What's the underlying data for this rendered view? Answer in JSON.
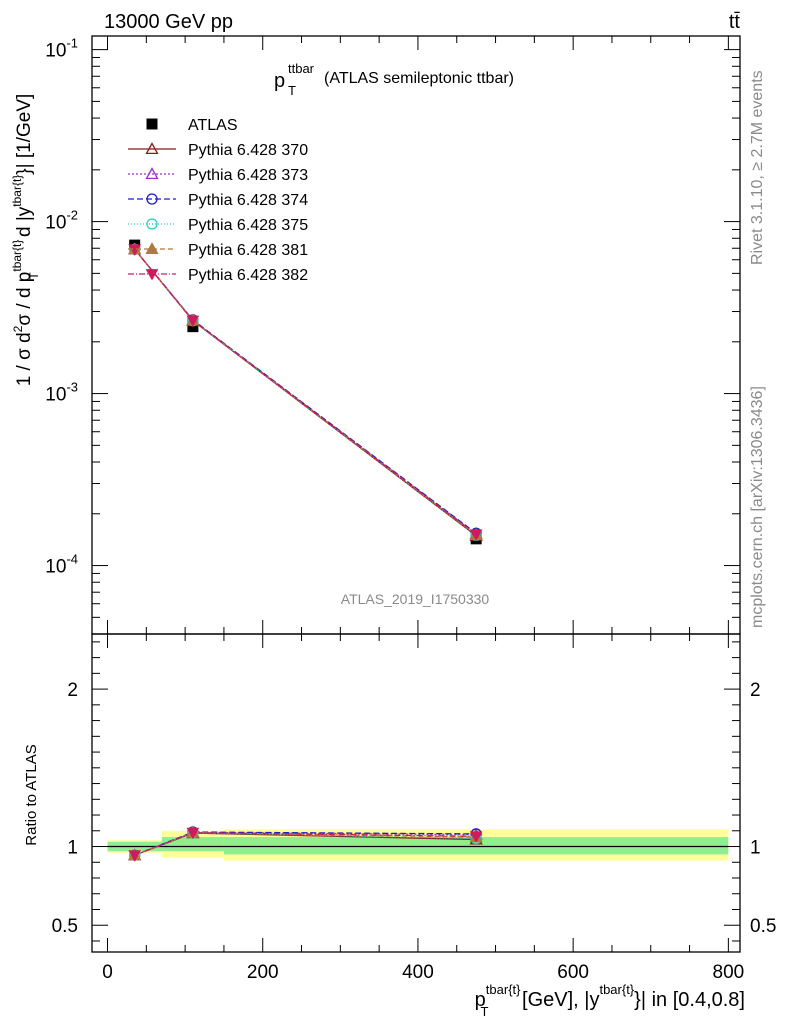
{
  "header": {
    "left": "13000 GeV pp",
    "right": "tt̄"
  },
  "side_text": {
    "rivet": "Rivet 3.1.10, ≥ 2.7M events",
    "mcplots": "mcplots.cern.ch [arXiv:1306.3436]"
  },
  "plot_title": {
    "main": "p",
    "sup": "ttbar",
    "sub": "T",
    "rest": "(ATLAS semileptonic ttbar)"
  },
  "analysis_id": "ATLAS_2019_I1750330",
  "y_label_main": "1 / σ d²σ / d p^{tbar{t}}_T d |y^{tbar{t}}| [1/GeV]",
  "y_label_ratio": "Ratio to ATLAS",
  "x_label": "p^{tbar{t}}_T [GeV], |y^{tbar{t}}| in [0.4,0.8]",
  "colors": {
    "data": "#000000",
    "p370": "#8b1a1a",
    "p373": "#9932cc",
    "p374": "#1c1ccc",
    "p375": "#20d0c0",
    "p381": "#b07a3a",
    "p382": "#d01a5a",
    "band_inner": "#90ee90",
    "band_outer": "#ffff99"
  },
  "chart_data": {
    "type": "line",
    "x_edges": [
      0,
      70,
      150,
      800
    ],
    "x": [
      35,
      110,
      475
    ],
    "xlim": [
      -20,
      815
    ],
    "xticks": [
      "0",
      "200",
      "400",
      "600",
      "800"
    ],
    "main": {
      "yscale": "log",
      "ylim": [
        4e-05,
        0.12
      ],
      "yticks": [
        "10^{-4}",
        "10^{-3}",
        "10^{-2}",
        "10^{-1}"
      ],
      "data": {
        "name": "ATLAS",
        "values": [
          0.0073,
          0.00245,
          0.000143
        ]
      }
    },
    "ratio": {
      "ylim": [
        0.33,
        2.35
      ],
      "yticks": [
        "0.5",
        "1",
        "2"
      ],
      "band_inner": [
        [
          0.97,
          1.03
        ],
        [
          0.97,
          1.06
        ],
        [
          0.95,
          1.06
        ]
      ],
      "band_outer": [
        [
          0.96,
          1.04
        ],
        [
          0.93,
          1.1
        ],
        [
          0.91,
          1.11
        ]
      ]
    },
    "series": [
      {
        "name": "Pythia 6.428 370",
        "key": "p370",
        "marker": "triangle-up-open",
        "dash": "",
        "values": [
          0.0069,
          0.00265,
          0.000149
        ],
        "ratio": [
          0.945,
          1.085,
          1.045
        ]
      },
      {
        "name": "Pythia 6.428 373",
        "key": "p373",
        "marker": "triangle-up-open",
        "dash": "2,2",
        "values": [
          0.0069,
          0.00267,
          0.000153
        ],
        "ratio": [
          0.945,
          1.09,
          1.075
        ]
      },
      {
        "name": "Pythia 6.428 374",
        "key": "p374",
        "marker": "circle-open",
        "dash": "6,3",
        "values": [
          0.0069,
          0.00268,
          0.000154
        ],
        "ratio": [
          0.945,
          1.092,
          1.08
        ]
      },
      {
        "name": "Pythia 6.428 375",
        "key": "p375",
        "marker": "circle-open",
        "dash": "1,2",
        "values": [
          0.0069,
          0.00265,
          0.00015
        ],
        "ratio": [
          0.945,
          1.086,
          1.05
        ]
      },
      {
        "name": "Pythia 6.428 381",
        "key": "p381",
        "marker": "triangle-up-filled",
        "dash": "5,3",
        "values": [
          0.0069,
          0.00266,
          0.000151
        ],
        "ratio": [
          0.945,
          1.088,
          1.06
        ]
      },
      {
        "name": "Pythia 6.428 382",
        "key": "p382",
        "marker": "triangle-down-filled",
        "dash": "6,2,1,2",
        "values": [
          0.0069,
          0.00266,
          0.000152
        ],
        "ratio": [
          0.945,
          1.088,
          1.065
        ]
      }
    ]
  }
}
